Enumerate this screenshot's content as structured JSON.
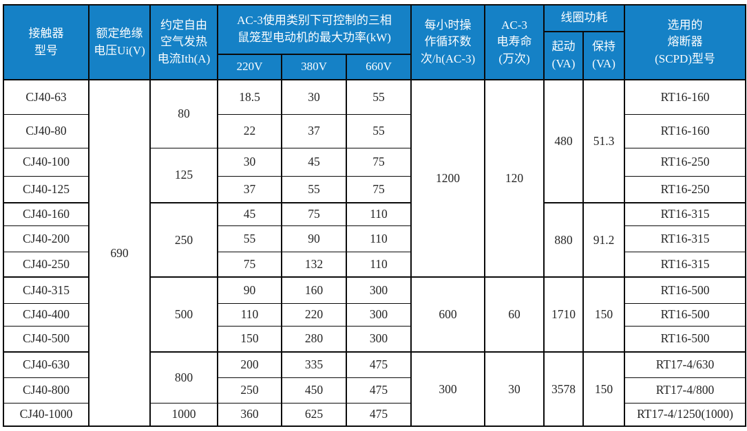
{
  "table": {
    "colors": {
      "header_bg": "#1581c6",
      "header_text": "#fbfdfe",
      "border": "#0a0a0a",
      "body_text": "#262626",
      "body_bg": "#ffffff"
    },
    "header": {
      "model": "接触器\n型号",
      "ui": "额定绝缘\n电压Ui(V)",
      "ith": "约定自由\n空气发热\n电流Ith(A)",
      "power_group": "AC-3使用类别下可控制的三相\n鼠笼型电动机的最大功率(kW)",
      "v220": "220V",
      "v380": "380V",
      "v660": "660V",
      "cycles": "每小时操\n作循环数\n次/h(AC-3)",
      "life": "AC-3\n电寿命\n(万次)",
      "coil_group": "线圈功耗",
      "coil_start": "起动\n(VA)",
      "coil_hold": "保持\n(VA)",
      "fuse": "选用的\n熔断器\n(SCPD)型号"
    },
    "rows": [
      {
        "model": "CJ40-63",
        "p220": "18.5",
        "p380": "30",
        "p660": "55",
        "fuse": "RT16-160"
      },
      {
        "model": "CJ40-80",
        "p220": "22",
        "p380": "37",
        "p660": "55",
        "fuse": "RT16-160"
      },
      {
        "model": "CJ40-100",
        "p220": "30",
        "p380": "45",
        "p660": "75",
        "fuse": "RT16-250"
      },
      {
        "model": "CJ40-125",
        "p220": "37",
        "p380": "55",
        "p660": "75",
        "fuse": "RT16-250"
      },
      {
        "model": "CJ40-160",
        "p220": "45",
        "p380": "75",
        "p660": "110",
        "fuse": "RT16-315"
      },
      {
        "model": "CJ40-200",
        "p220": "55",
        "p380": "90",
        "p660": "110",
        "fuse": "RT16-315"
      },
      {
        "model": "CJ40-250",
        "p220": "75",
        "p380": "132",
        "p660": "110",
        "fuse": "RT16-315"
      },
      {
        "model": "CJ40-315",
        "p220": "90",
        "p380": "160",
        "p660": "300",
        "fuse": "RT16-500"
      },
      {
        "model": "CJ40-400",
        "p220": "110",
        "p380": "220",
        "p660": "300",
        "fuse": "RT16-500"
      },
      {
        "model": "CJ40-500",
        "p220": "150",
        "p380": "280",
        "p660": "300",
        "fuse": "RT16-500"
      },
      {
        "model": "CJ40-630",
        "p220": "200",
        "p380": "335",
        "p660": "475",
        "fuse": "RT17-4/630"
      },
      {
        "model": "CJ40-800",
        "p220": "250",
        "p380": "450",
        "p660": "475",
        "fuse": "RT17-4/800"
      },
      {
        "model": "CJ40-1000",
        "p220": "360",
        "p380": "625",
        "p660": "475",
        "fuse": "RT17-4/1250(1000)"
      }
    ],
    "merged": {
      "ui": [
        {
          "value": "690",
          "span": 13
        }
      ],
      "ith": [
        {
          "value": "80",
          "span": 2
        },
        {
          "value": "125",
          "span": 2
        },
        {
          "value": "250",
          "span": 3
        },
        {
          "value": "500",
          "span": 3
        },
        {
          "value": "800",
          "span": 2
        },
        {
          "value": "1000",
          "span": 1
        }
      ],
      "cycles": [
        {
          "value": "1200",
          "span": 7
        },
        {
          "value": "600",
          "span": 3
        },
        {
          "value": "300",
          "span": 3
        }
      ],
      "life": [
        {
          "value": "120",
          "span": 7
        },
        {
          "value": "60",
          "span": 3
        },
        {
          "value": "30",
          "span": 3
        }
      ],
      "coil_start": [
        {
          "value": "480",
          "span": 4
        },
        {
          "value": "880",
          "span": 3
        },
        {
          "value": "1710",
          "span": 3
        },
        {
          "value": "3578",
          "span": 3
        }
      ],
      "coil_hold": [
        {
          "value": "51.3",
          "span": 4
        },
        {
          "value": "91.2",
          "span": 3
        },
        {
          "value": "150",
          "span": 3
        },
        {
          "value": "150",
          "span": 3
        }
      ]
    }
  }
}
